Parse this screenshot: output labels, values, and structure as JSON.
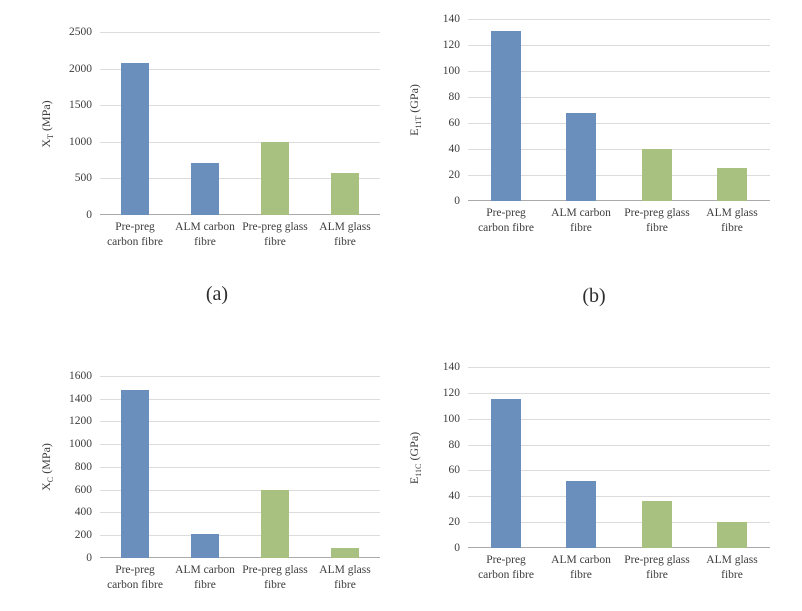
{
  "figure": {
    "background": "#ffffff",
    "text_color": "#3d3d3d"
  },
  "palette": {
    "carbon_blue": "#6b8fbc",
    "glass_green": "#a8c080",
    "gridline": "#dcdcdc",
    "axis_line": "#aaaaaa"
  },
  "chart_data": [
    {
      "id": "a",
      "type": "bar",
      "caption": "(a)",
      "ylabel": {
        "base": "X",
        "sub": "T",
        "unit": " (MPa)"
      },
      "categories": [
        "Pre-preg carbon fibre",
        "ALM carbon fibre",
        "Pre-preg glass fibre",
        "ALM glass fibre"
      ],
      "values": [
        2070,
        710,
        1000,
        570
      ],
      "bar_colors": [
        "carbon_blue",
        "carbon_blue",
        "glass_green",
        "glass_green"
      ],
      "ylim": [
        0,
        2500
      ],
      "ytick_step": 500,
      "grid": true,
      "legend": false
    },
    {
      "id": "b",
      "type": "bar",
      "caption": "(b)",
      "ylabel": {
        "base": "E",
        "sub": "11T",
        "unit": " (GPa)"
      },
      "categories": [
        "Pre-preg carbon fibre",
        "ALM carbon fibre",
        "Pre-preg glass fibre",
        "ALM glass fibre"
      ],
      "values": [
        131,
        68,
        40,
        25
      ],
      "bar_colors": [
        "carbon_blue",
        "carbon_blue",
        "glass_green",
        "glass_green"
      ],
      "ylim": [
        0,
        140
      ],
      "ytick_step": 20,
      "grid": true,
      "legend": false
    },
    {
      "id": "c",
      "type": "bar",
      "caption": "",
      "ylabel": {
        "base": "X",
        "sub": "C",
        "unit": " (MPa)"
      },
      "categories": [
        "Pre-preg carbon fibre",
        "ALM carbon fibre",
        "Pre-preg glass fibre",
        "ALM glass fibre"
      ],
      "values": [
        1480,
        215,
        600,
        90
      ],
      "bar_colors": [
        "carbon_blue",
        "carbon_blue",
        "glass_green",
        "glass_green"
      ],
      "ylim": [
        0,
        1600
      ],
      "ytick_step": 200,
      "grid": true,
      "legend": false
    },
    {
      "id": "d",
      "type": "bar",
      "caption": "",
      "ylabel": {
        "base": "E",
        "sub": "11C",
        "unit": " (GPa)"
      },
      "categories": [
        "Pre-preg carbon fibre",
        "ALM carbon fibre",
        "Pre-preg glass fibre",
        "ALM glass fibre"
      ],
      "values": [
        115,
        52,
        36,
        20
      ],
      "bar_colors": [
        "carbon_blue",
        "carbon_blue",
        "glass_green",
        "glass_green"
      ],
      "ylim": [
        0,
        140
      ],
      "ytick_step": 20,
      "grid": true,
      "legend": false
    }
  ]
}
